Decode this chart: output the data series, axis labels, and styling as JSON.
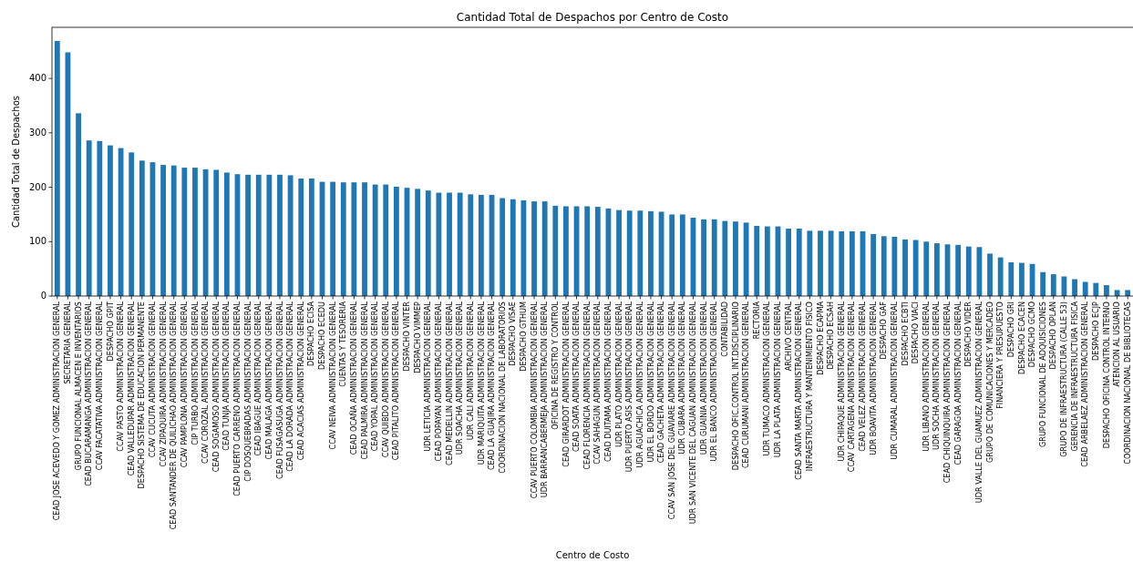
{
  "chart_data": {
    "type": "bar",
    "title": "Cantidad Total de Despachos por Centro de Costo",
    "xlabel": "Centro de Costo",
    "ylabel": "Cantidad Total de Despachos",
    "categories": [
      "CEAD JOSE ACEVEDO Y GOMEZ ADMINISTRACION GENERAL",
      "SECRETARIA GENERAL",
      "GRUPO FUNCIONAL ALMACEN E INVENTARIOS",
      "CEAD BUCARAMANGA ADMINISTRACION GENERAL",
      "CCAV FACATATIVA ADMINISTRACION GENERAL",
      "DESPACHO GPIT",
      "CCAV PASTO ADMINISTRACION GENERAL",
      "CEAD VALLEDUPAR ADMINISTRACION GENERAL",
      "DESPACHO SISTEMA DE EDUCACION PERMANENTE",
      "CCAV CUCUTA ADMINISTRACION GENERAL",
      "CCAV ZIPAQUIRA ADMINISTRACION GENERAL",
      "CEAD SANTANDER DE QUILICHAO ADMINISTRACION GENERAL",
      "CCAV PAMPLONA ADMINISTRACION GENERAL",
      "CIP TURBO ADMINISTRACION GENERAL",
      "CCAV COROZAL ADMINISTRACION GENERAL",
      "CEAD SOGAMOSO ADMINISTRACION GENERAL",
      "CEAD TUNJA ADMINISTRACION GENERAL",
      "CEAD PUERTO CARRENO ADMINISTRACION GENERAL",
      "CIP DOSQUEBRADAS ADMINISTRACION GENERAL",
      "CEAD IBAGUE ADMINISTRACION GENERAL",
      "CEAD MALAGA ADMINISTRACION GENERAL",
      "CEAD FUSAGASUGA ADMINISTRACION GENERAL",
      "CEAD LA DORADA ADMINISTRACION GENERAL",
      "CEAD ACACIAS ADMINISTRACION GENERAL",
      "DESPACHO ECISA",
      "DESPACHO ECEDU",
      "CCAV NEIVA ADMINISTRACION GENERAL",
      "CUENTAS Y TESORERIA",
      "CEAD OCAÑA ADMINISTRACION GENERAL",
      "CEAD PALMIRA ADMINISTRACION GENERAL",
      "CEAD YOPAL ADMINISTRACION GENERAL",
      "CCAV QUIBDO ADMINISTRACION GENERAL",
      "CEAD PITALITO ADMINISTRACION GENERAL",
      "DESPACHO VINTER",
      "DESPACHO VIMMEP",
      "UDR LETICIA ADMINISTRACION GENERAL",
      "CEAD POPAYAN ADMINISTRACION GENERAL",
      "CEAD MEDELLIN ADMINISTRACION GENERAL",
      "UDR SOACHA ADMINISTRACION GENERAL",
      "UDR CALI ADMINISTRACION GENERAL",
      "UDR MARIQUITA ADMINISTRACION GENERAL",
      "CEAD LA GUAJIRA ADMINISTRACION GENERAL",
      "COORDINACION NACIONAL DE LABORATORIOS",
      "DESPACHO VISAE",
      "DESPACHO GTHUM",
      "CCAV PUERTO COLOMBIA ADMINISTRACION GENERAL",
      "UDR BARRANCABERMEJA ADMINISTRACION GENERAL",
      "OFICINA DE REGISTRO Y CONTROL",
      "CEAD GIRARDOT ADMINISTRACION GENERAL",
      "CEAD SOATA ADMINISTRACION GENERAL",
      "CEAD FLORENCIA ADMINISTRACION GENERAL",
      "CCAV SAHAGUN ADMINISTRACION GENERAL",
      "CEAD DUITAMA ADMINISTRACION GENERAL",
      "UDR PLATO ADMINISTRACION GENERAL",
      "UDR PUERTO ASIS ADMINISTRACION GENERAL",
      "UDR AGUACHICA ADMINISTRACION GENERAL",
      "UDR EL BORDO ADMINISTRACION GENERAL",
      "CEAD GACHETA ADMINISTRACION GENERAL",
      "CCAV SAN JOSE DEL GUAVIARE ADMINISTRACION GENERAL",
      "UDR CUBARA ADMINISTRACION GENERAL",
      "UDR SAN VICENTE DEL CAGUAN ADMINISTRACION GENERAL",
      "UDR GUAINIA ADMINISTRACION GENERAL",
      "UDR EL BANCO ADMINISTRACION GENERAL",
      "CONTABILIDAD",
      "DESPACHO OFIC.CONTROL INT.DISCIPLINARIO",
      "CEAD CURUMANI ADMINISTRACION GENERAL",
      "RECTORIA",
      "UDR TUMACO ADMINISTRACION GENERAL",
      "UDR LA PLATA ADMINISTRACION GENERAL",
      "ARCHIVO CENTRAL",
      "CEAD SANTA MARTA ADMINISTRACION GENERAL",
      "INFRAESTRUCTURA Y MANTENIMIENTO FISICO",
      "DESPACHO ECAPMA",
      "DESPACHO ECSAH",
      "UDR CHIPAQUE ADMINISTRACION GENERAL",
      "CCAV CARTAGENA ADMINISTRACION GENERAL",
      "CEAD VELEZ ADMINISTRACION GENERAL",
      "UDR BOAVITA ADMINISTRACION GENERAL",
      "DESPACHO GAF",
      "UDR CUMARAL ADMINISTRACION GENERAL",
      "DESPACHO ECBTI",
      "DESPACHO VIACI",
      "UDR LIBANO ADMINISTRACION GENERAL",
      "UDR SOCHA ADMINISTRACION GENERAL",
      "CEAD CHIQUINQUIRA ADMINISTRACION GENERAL",
      "CEAD GARAGOA ADMINISTRACION GENERAL",
      "DESPACHO VIDER",
      "UDR VALLE DEL GUAMUEZ ADMINISTRACION GENERAL",
      "GRUPO DE COMUNICACIONES Y MERCADEO",
      "FINANCIERA Y PRESUPUESTO",
      "DESPACHO GRI",
      "DESPACHO ECACEN",
      "DESPACHO GCMO",
      "GRUPO FUNCIONAL DE ADQUISICIONES",
      "DESPACHO OPLAN",
      "GRUPO DE INFRAESTRUCTURA (CALLE 53)",
      "GERENCIA DE INFRAESTRUCTURA FISICA",
      "CEAD ARBELAEZ ADMINISTRACION GENERAL",
      "DESPACHO ECJP",
      "DESPACHO OFICINA CONTROL INTERNO",
      "ATENCION AL USUARIO",
      "COORDINACION NACIONAL DE BIBLIOTECAS"
    ],
    "values": [
      469,
      448,
      336,
      286,
      285,
      277,
      272,
      264,
      249,
      246,
      241,
      240,
      236,
      236,
      233,
      232,
      227,
      224,
      223,
      223,
      223,
      223,
      222,
      216,
      216,
      210,
      210,
      209,
      209,
      209,
      205,
      205,
      201,
      199,
      197,
      194,
      190,
      190,
      190,
      187,
      186,
      186,
      180,
      178,
      176,
      174,
      174,
      166,
      165,
      165,
      165,
      164,
      161,
      158,
      157,
      157,
      156,
      155,
      150,
      150,
      144,
      141,
      141,
      138,
      137,
      135,
      129,
      128,
      128,
      124,
      124,
      120,
      120,
      120,
      119,
      119,
      119,
      114,
      110,
      109,
      104,
      103,
      100,
      97,
      95,
      94,
      91,
      90,
      78,
      71,
      62,
      61,
      59,
      44,
      40,
      36,
      31,
      26,
      24,
      20,
      11,
      11
    ],
    "color": "#1f77b4",
    "ylim": [
      0,
      494
    ],
    "yticks": [
      0,
      100,
      200,
      300,
      400
    ]
  }
}
